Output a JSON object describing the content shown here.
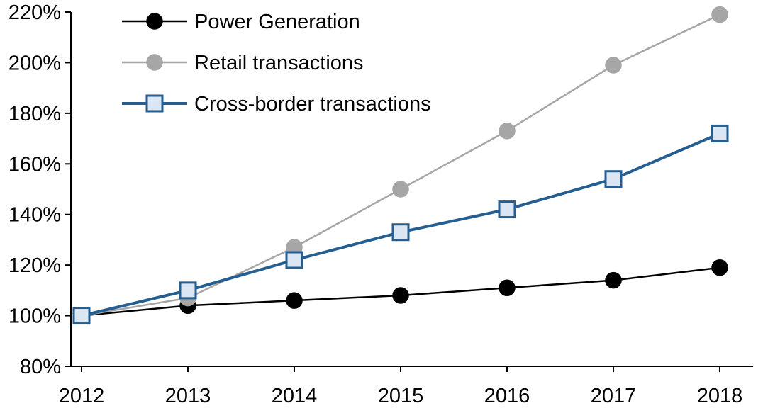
{
  "chart_data": {
    "type": "line",
    "title": "",
    "xlabel": "",
    "ylabel": "",
    "grid": false,
    "legend_position": "top-left",
    "categories": [
      "2012",
      "2013",
      "2014",
      "2015",
      "2016",
      "2017",
      "2018"
    ],
    "ylim": [
      80,
      220
    ],
    "ytick_step": 20,
    "ytick_labels": [
      "80%",
      "100%",
      "120%",
      "140%",
      "160%",
      "180%",
      "200%",
      "220%"
    ],
    "series": [
      {
        "name": "Power Generation",
        "values": [
          100,
          104,
          106,
          108,
          111,
          114,
          119
        ],
        "color": "#000000",
        "marker": "circle",
        "marker_fill": "#000000",
        "line_width": 2.5
      },
      {
        "name": "Retail transactions",
        "values": [
          100,
          107,
          127,
          150,
          173,
          199,
          219
        ],
        "color": "#a6a6a6",
        "marker": "circle",
        "marker_fill": "#a6a6a6",
        "line_width": 2.5
      },
      {
        "name": "Cross-border transactions",
        "values": [
          100,
          110,
          122,
          133,
          142,
          154,
          172
        ],
        "color": "#255e91",
        "marker": "square",
        "marker_fill": "#dae6f3",
        "line_width": 4
      }
    ]
  }
}
